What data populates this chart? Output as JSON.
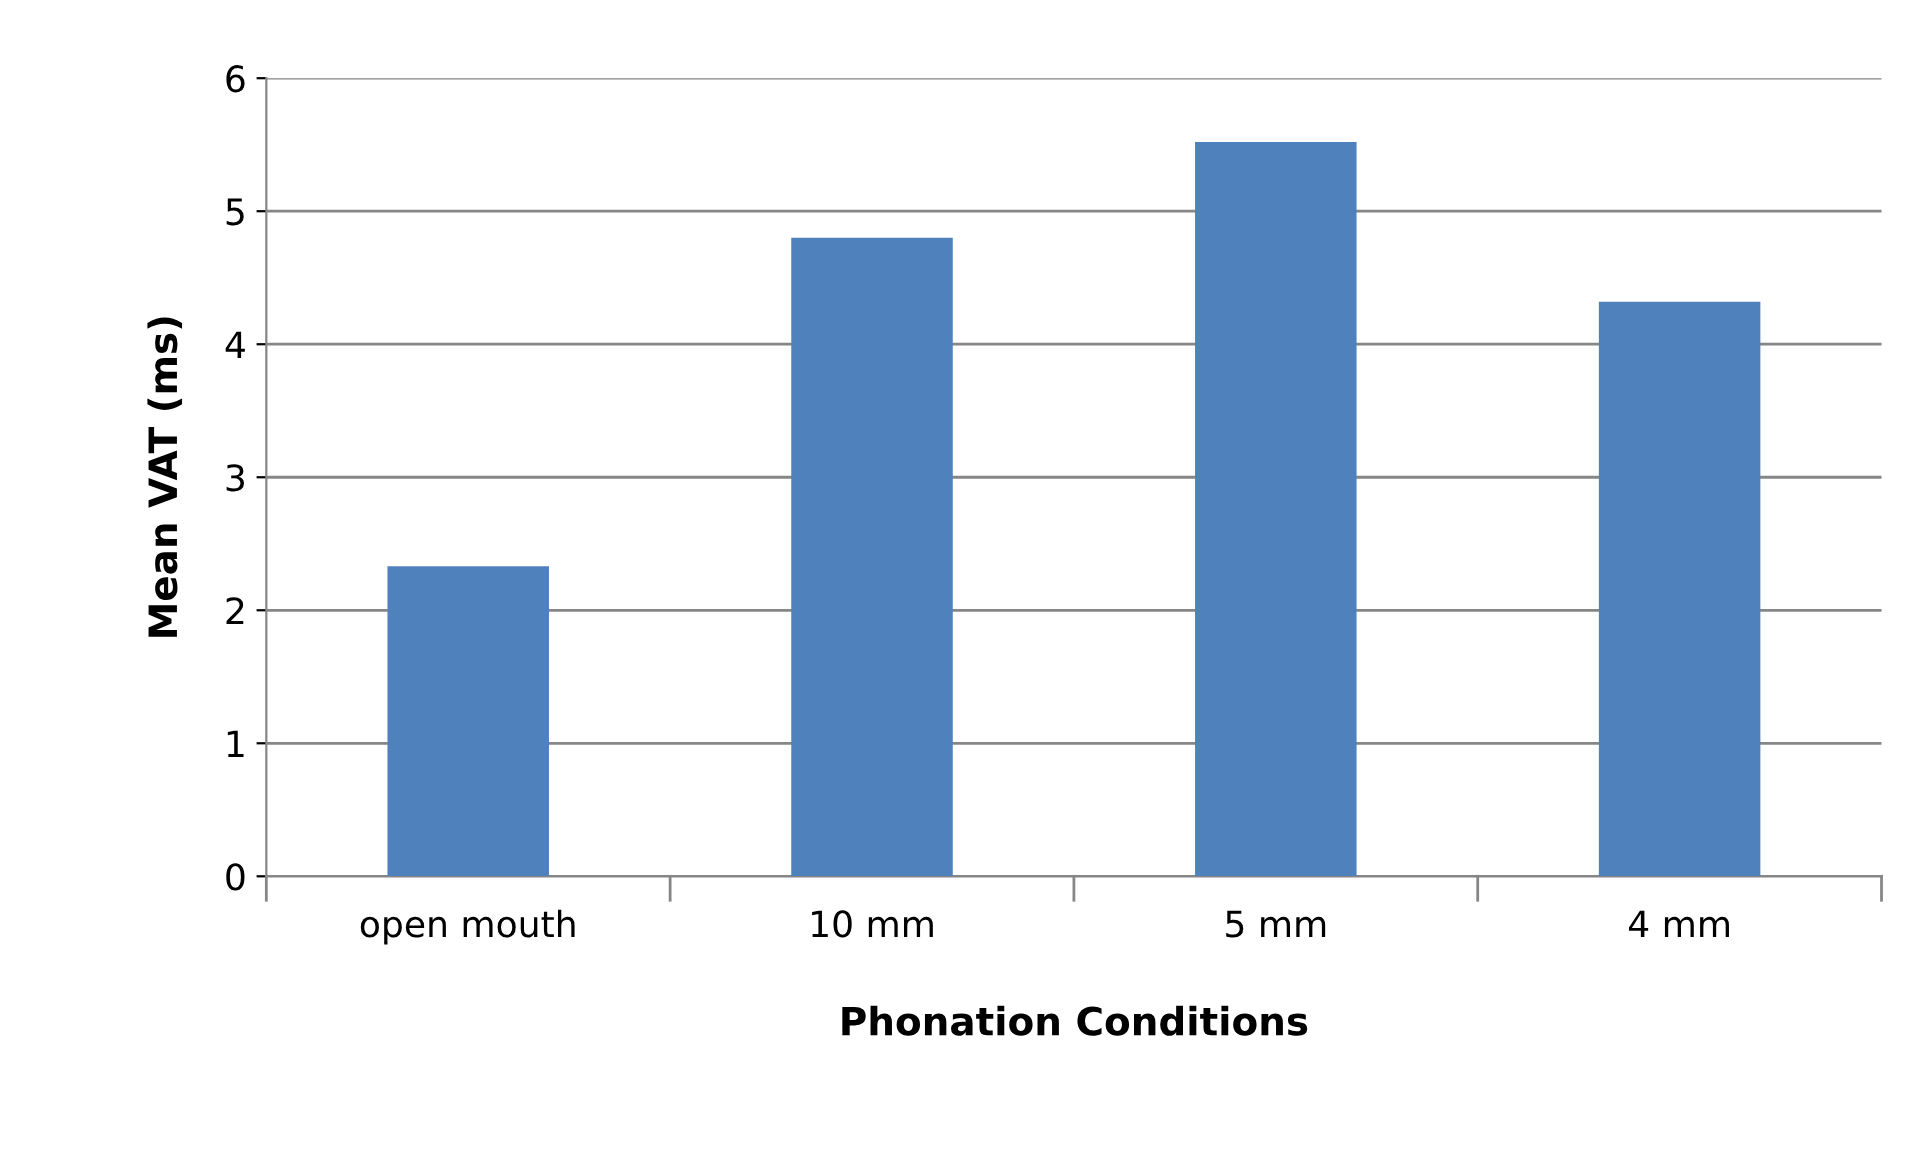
{
  "chart_data": {
    "type": "bar",
    "xlabel": "Phonation Conditions",
    "ylabel": "Mean VAT (ms)",
    "categories": [
      "open mouth",
      "10 mm",
      "5 mm",
      "4 mm"
    ],
    "values": [
      2.33,
      4.8,
      5.52,
      4.32
    ],
    "color": "#4f81bd",
    "ylim": [
      0,
      6
    ],
    "yticks": [
      0,
      1,
      2,
      3,
      4,
      5,
      6
    ],
    "grid": "y"
  }
}
